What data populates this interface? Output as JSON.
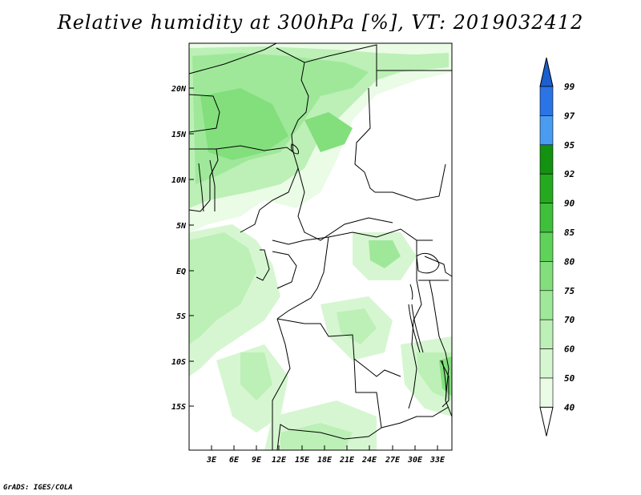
{
  "title": "Relative humidity at 300hPa [%], VT: 2019032412",
  "footer": "GrADS: IGES/COLA",
  "map": {
    "lat_ticks": [
      "20N",
      "15N",
      "10N",
      "5N",
      "EQ",
      "5S",
      "10S",
      "15S"
    ],
    "lon_ticks": [
      "3E",
      "6E",
      "9E",
      "12E",
      "15E",
      "18E",
      "21E",
      "24E",
      "27E",
      "30E",
      "33E"
    ]
  },
  "colorbar": {
    "labels": [
      "99",
      "97",
      "95",
      "92",
      "90",
      "85",
      "80",
      "75",
      "70",
      "60",
      "50",
      "40"
    ],
    "colors": [
      "#1a5fd0",
      "#2b74e6",
      "#4a9cf0",
      "#12920f",
      "#25a91f",
      "#3fbf3a",
      "#5fd25a",
      "#82df7c",
      "#9fe89a",
      "#bcf0b6",
      "#d6f6d1",
      "#eafbe6",
      "#ffffff"
    ]
  },
  "shading_colors": {
    "c40": "#eafbe6",
    "c50": "#d6f6d1",
    "c60": "#bcf0b6",
    "c70": "#9fe89a",
    "c75": "#82df7c"
  }
}
